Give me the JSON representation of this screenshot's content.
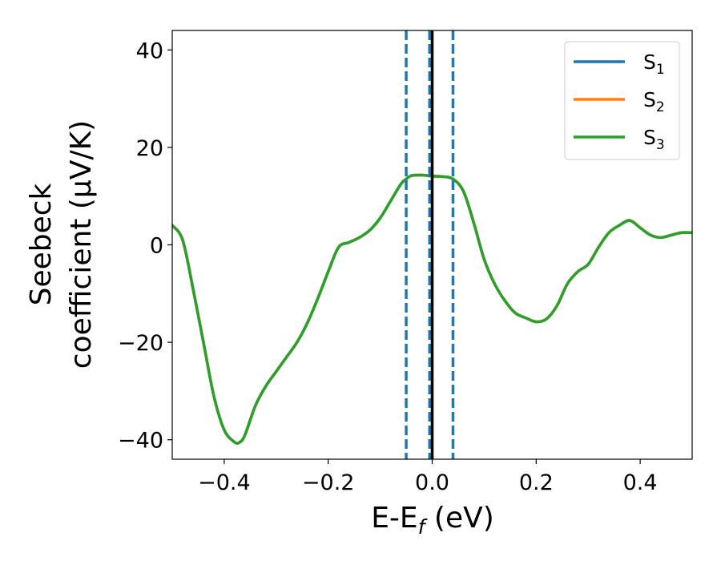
{
  "chart_data": {
    "type": "line",
    "xlabel": {
      "base": "E-E",
      "sub": "f",
      "suffix": " (eV)"
    },
    "ylabel": {
      "line1": "Seebeck",
      "line2": "coefficient  (μV/K)"
    },
    "xlim": [
      -0.5,
      0.5
    ],
    "ylim": [
      -44,
      44
    ],
    "xticks": [
      -0.4,
      -0.2,
      0.0,
      0.2,
      0.4
    ],
    "xtick_labels": [
      "−0.4",
      "−0.2",
      "0.0",
      "0.2",
      "0.4"
    ],
    "yticks": [
      -40,
      -20,
      0,
      20,
      40
    ],
    "ytick_labels": [
      "−40",
      "−20",
      "0",
      "20",
      "40"
    ],
    "grid": false,
    "legend_position": "top-right",
    "series": [
      {
        "name": "S",
        "sub": "1",
        "color": "#1f77b4",
        "x": [
          -0.5,
          -0.48,
          -0.46,
          -0.44,
          -0.42,
          -0.4,
          -0.38,
          -0.37,
          -0.36,
          -0.34,
          -0.32,
          -0.3,
          -0.28,
          -0.26,
          -0.24,
          -0.22,
          -0.2,
          -0.18,
          -0.16,
          -0.14,
          -0.12,
          -0.1,
          -0.08,
          -0.06,
          -0.05,
          -0.04,
          -0.02,
          0.0,
          0.02,
          0.04,
          0.06,
          0.08,
          0.1,
          0.12,
          0.14,
          0.16,
          0.18,
          0.2,
          0.22,
          0.24,
          0.26,
          0.28,
          0.3,
          0.32,
          0.34,
          0.36,
          0.38,
          0.4,
          0.42,
          0.44,
          0.46,
          0.48,
          0.5
        ],
        "y": [
          4,
          1,
          -9,
          -20,
          -31,
          -38,
          -40.5,
          -40.5,
          -39,
          -33,
          -29,
          -26,
          -23,
          -20,
          -16,
          -11,
          -5.5,
          -0.5,
          0.5,
          1.5,
          3,
          5.5,
          9,
          12.5,
          13.5,
          14.2,
          14.3,
          14.1,
          14.0,
          13.5,
          11,
          4.5,
          -3,
          -8,
          -11.5,
          -14,
          -15,
          -15.8,
          -15.2,
          -12.5,
          -8,
          -5.5,
          -4,
          -0.5,
          2.5,
          4,
          5,
          3.5,
          2,
          1.5,
          2,
          2.5,
          2.5
        ]
      },
      {
        "name": "S",
        "sub": "2",
        "color": "#ff7f0e",
        "x": [
          -0.5,
          -0.48,
          -0.46,
          -0.44,
          -0.42,
          -0.4,
          -0.38,
          -0.37,
          -0.36,
          -0.34,
          -0.32,
          -0.3,
          -0.28,
          -0.26,
          -0.24,
          -0.22,
          -0.2,
          -0.18,
          -0.16,
          -0.14,
          -0.12,
          -0.1,
          -0.08,
          -0.06,
          -0.05,
          -0.04,
          -0.02,
          0.0,
          0.02,
          0.04,
          0.06,
          0.08,
          0.1,
          0.12,
          0.14,
          0.16,
          0.18,
          0.2,
          0.22,
          0.24,
          0.26,
          0.28,
          0.3,
          0.32,
          0.34,
          0.36,
          0.38,
          0.4,
          0.42,
          0.44,
          0.46,
          0.48,
          0.5
        ],
        "y": [
          4,
          1,
          -9,
          -20,
          -31,
          -38,
          -40.5,
          -40.5,
          -39,
          -33,
          -29,
          -26,
          -23,
          -20,
          -16,
          -11,
          -5.5,
          -0.5,
          0.5,
          1.5,
          3,
          5.5,
          9,
          12.5,
          13.5,
          14.2,
          14.3,
          14.1,
          14.0,
          13.5,
          11,
          4.5,
          -3,
          -8,
          -11.5,
          -14,
          -15,
          -15.8,
          -15.2,
          -12.5,
          -8,
          -5.5,
          -4,
          -0.5,
          2.5,
          4,
          5,
          3.5,
          2,
          1.5,
          2,
          2.5,
          2.5
        ]
      },
      {
        "name": "S",
        "sub": "3",
        "color": "#2ca02c",
        "x": [
          -0.5,
          -0.48,
          -0.46,
          -0.44,
          -0.42,
          -0.4,
          -0.38,
          -0.37,
          -0.36,
          -0.34,
          -0.32,
          -0.3,
          -0.28,
          -0.26,
          -0.24,
          -0.22,
          -0.2,
          -0.18,
          -0.16,
          -0.14,
          -0.12,
          -0.1,
          -0.08,
          -0.06,
          -0.05,
          -0.04,
          -0.02,
          0.0,
          0.02,
          0.04,
          0.06,
          0.08,
          0.1,
          0.12,
          0.14,
          0.16,
          0.18,
          0.2,
          0.22,
          0.24,
          0.26,
          0.28,
          0.3,
          0.32,
          0.34,
          0.36,
          0.38,
          0.4,
          0.42,
          0.44,
          0.46,
          0.48,
          0.5
        ],
        "y": [
          4,
          1,
          -9,
          -20,
          -31,
          -38,
          -40.5,
          -40.5,
          -39,
          -33,
          -29,
          -26,
          -23,
          -20,
          -16,
          -11,
          -5.5,
          -0.5,
          0.5,
          1.5,
          3,
          5.5,
          9,
          12.5,
          13.5,
          14.2,
          14.3,
          14.1,
          14.0,
          13.5,
          11,
          4.5,
          -3,
          -8,
          -11.5,
          -14,
          -15,
          -15.8,
          -15.2,
          -12.5,
          -8,
          -5.5,
          -4,
          -0.5,
          2.5,
          4,
          5,
          3.5,
          2,
          1.5,
          2,
          2.5,
          2.5
        ]
      }
    ],
    "vlines": [
      {
        "x": -0.05,
        "style": "dashed",
        "color": "#1f77b4"
      },
      {
        "x": -0.005,
        "style": "dashed",
        "color": "#1f77b4"
      },
      {
        "x": 0.04,
        "style": "dashed",
        "color": "#1f77b4"
      },
      {
        "x": 0.0,
        "style": "solid",
        "color": "#000000"
      }
    ]
  }
}
